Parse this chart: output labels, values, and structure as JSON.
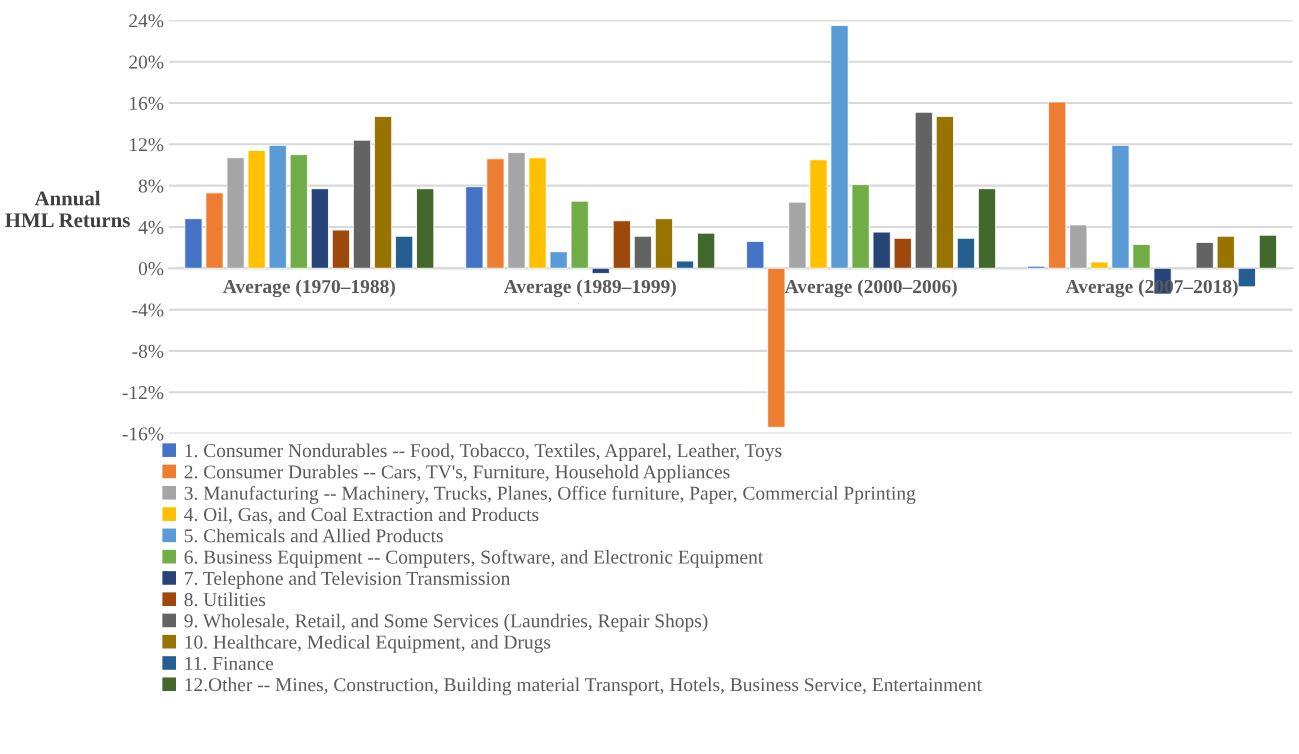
{
  "chart_data": {
    "type": "bar",
    "ylabel": "Annual\nHML Returns",
    "categories": [
      "Average (1970–1988)",
      "Average (1989–1999)",
      "Average (2000–2006)",
      "Average (2007–2018)"
    ],
    "series": [
      {
        "name": "1. Consumer Nondurables -- Food, Tobacco, Textiles, Apparel, Leather, Toys",
        "color": "#4472c4",
        "values": [
          4.8,
          7.9,
          2.6,
          0.2
        ]
      },
      {
        "name": "2. Consumer Durables -- Cars, TV's, Furniture, Household Appliances",
        "color": "#ed7d31",
        "values": [
          7.3,
          10.6,
          -15.4,
          16.1
        ]
      },
      {
        "name": "3. Manufacturing -- Machinery, Trucks, Planes, Office furniture, Paper, Commercial Pprinting",
        "color": "#a5a5a5",
        "values": [
          10.7,
          11.2,
          6.4,
          4.2
        ]
      },
      {
        "name": "4. Oil, Gas, and Coal Extraction and Products",
        "color": "#ffc000",
        "values": [
          11.4,
          10.7,
          10.5,
          0.6
        ]
      },
      {
        "name": "5. Chemicals and Allied Products",
        "color": "#5b9bd5",
        "values": [
          11.9,
          1.6,
          23.5,
          11.9
        ]
      },
      {
        "name": "6. Business Equipment -- Computers, Software, and Electronic Equipment",
        "color": "#70ad47",
        "values": [
          11.0,
          6.5,
          8.1,
          2.3
        ]
      },
      {
        "name": "7. Telephone and Television Transmission",
        "color": "#264478",
        "values": [
          7.7,
          -0.5,
          3.5,
          -2.5
        ]
      },
      {
        "name": "8. Utilities",
        "color": "#9e480e",
        "values": [
          3.7,
          4.6,
          2.9,
          null
        ]
      },
      {
        "name": "9. Wholesale, Retail, and Some Services (Laundries, Repair Shops)",
        "color": "#636363",
        "values": [
          12.4,
          3.1,
          15.1,
          2.5
        ]
      },
      {
        "name": "10. Healthcare, Medical Equipment, and Drugs",
        "color": "#997300",
        "values": [
          14.7,
          4.8,
          14.7,
          3.1
        ]
      },
      {
        "name": "11. Finance",
        "color": "#255e91",
        "values": [
          3.1,
          0.7,
          2.9,
          -1.8
        ]
      },
      {
        "name": "12.Other -- Mines, Construction, Building material Transport, Hotels, Business Service, Entertainment",
        "color": "#43682b",
        "values": [
          7.7,
          3.4,
          7.7,
          3.2
        ]
      }
    ],
    "ylim": [
      -16,
      24
    ],
    "yticks": [
      {
        "value": -16,
        "label": "-16%"
      },
      {
        "value": -12,
        "label": "-12%"
      },
      {
        "value": -8,
        "label": "-8%"
      },
      {
        "value": -4,
        "label": "-4%"
      },
      {
        "value": 0,
        "label": "0%"
      },
      {
        "value": 4,
        "label": "4%"
      },
      {
        "value": 8,
        "label": "8%"
      },
      {
        "value": 12,
        "label": "12%"
      },
      {
        "value": 16,
        "label": "16%"
      },
      {
        "value": 20,
        "label": "20%"
      },
      {
        "value": 24,
        "label": "24%"
      }
    ],
    "grid": "y",
    "legend": "bottom"
  }
}
